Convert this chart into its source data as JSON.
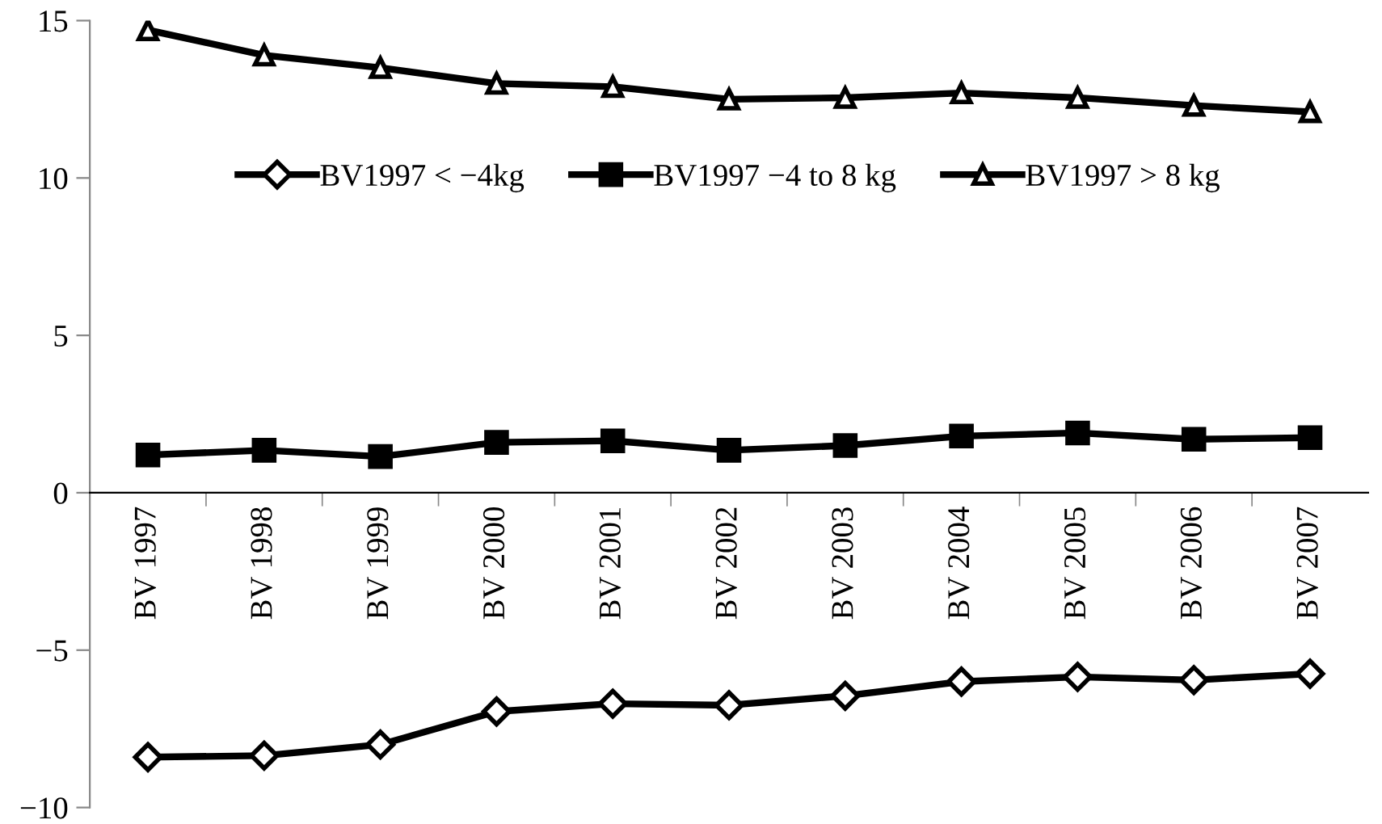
{
  "chart_data": {
    "type": "line",
    "categories": [
      "BV 1997",
      "BV 1998",
      "BV 1999",
      "BV 2000",
      "BV 2001",
      "BV 2002",
      "BV 2003",
      "BV 2004",
      "BV 2005",
      "BV 2006",
      "BV 2007"
    ],
    "series": [
      {
        "name": "BV1997 < −4kg",
        "color": "#000000",
        "marker": "diamond",
        "values": [
          -8.4,
          -8.35,
          -8.0,
          -6.95,
          -6.7,
          -6.75,
          -6.45,
          -6.0,
          -5.85,
          -5.95,
          -5.75
        ]
      },
      {
        "name": "BV1997 −4 to 8 kg",
        "color": "#000000",
        "marker": "square",
        "values": [
          1.2,
          1.35,
          1.15,
          1.6,
          1.65,
          1.35,
          1.5,
          1.8,
          1.9,
          1.7,
          1.75
        ]
      },
      {
        "name": "BV1997 > 8 kg",
        "color": "#000000",
        "marker": "triangle",
        "values": [
          14.7,
          13.9,
          13.5,
          13.0,
          12.9,
          12.5,
          12.55,
          12.7,
          12.55,
          12.3,
          12.1
        ]
      }
    ],
    "ylim": [
      -10,
      15
    ],
    "yticks": [
      {
        "value": -10,
        "label": "−10"
      },
      {
        "value": -5,
        "label": "−5"
      },
      0,
      5,
      10,
      15
    ],
    "grid": false,
    "legend": "top",
    "line_style": "solid"
  }
}
